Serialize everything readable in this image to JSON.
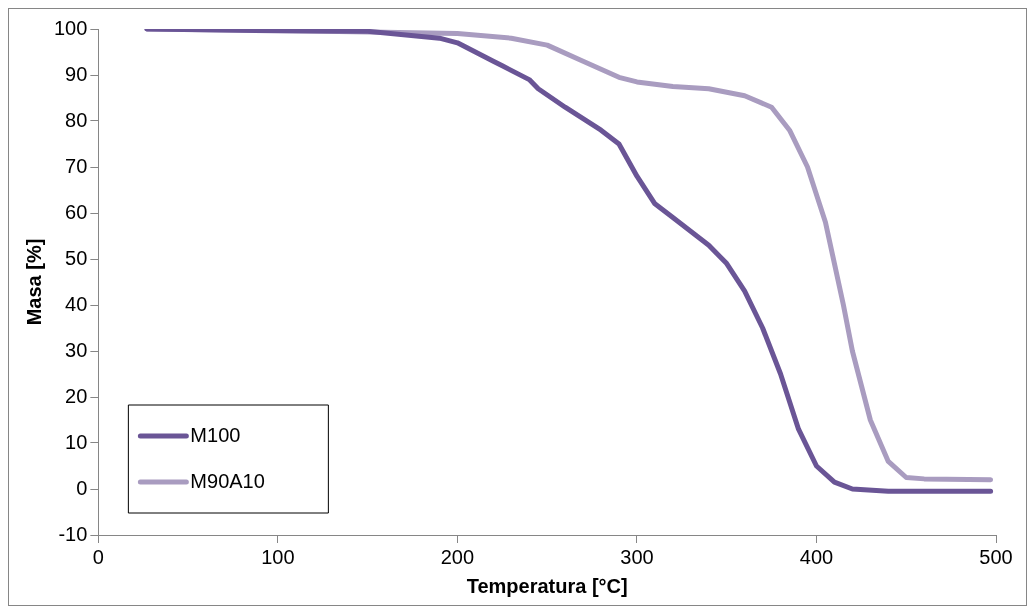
{
  "chart_data": {
    "type": "line",
    "xlabel": "Temperatura [°C]",
    "ylabel": "Masa [%]",
    "xlim": [
      0,
      500
    ],
    "xticks": [
      0,
      100,
      200,
      300,
      400,
      500
    ],
    "ylim": [
      -10,
      100
    ],
    "yticks": [
      -10,
      0,
      10,
      20,
      30,
      40,
      50,
      60,
      70,
      80,
      90,
      100
    ],
    "grid": false,
    "legend": "bottom left",
    "marker": "none",
    "line_style": "solid",
    "series": [
      {
        "name": "M100",
        "color": "#6a5596",
        "x": [
          27,
          100,
          150,
          190,
          200,
          210,
          220,
          225,
          240,
          245,
          260,
          280,
          290,
          300,
          310,
          320,
          340,
          350,
          360,
          370,
          380,
          390,
          400,
          410,
          420,
          440,
          497
        ],
        "values": [
          100,
          99.6,
          99.5,
          98,
          97,
          95,
          93,
          92,
          89,
          87,
          83,
          78,
          75,
          68,
          62,
          59,
          53,
          49,
          43,
          35,
          25,
          13,
          5,
          1.5,
          0,
          -0.5,
          -0.5
        ]
      },
      {
        "name": "M90A10",
        "color": "#a99cc0",
        "x": [
          27,
          100,
          200,
          230,
          250,
          270,
          290,
          300,
          320,
          340,
          360,
          375,
          385,
          395,
          405,
          415,
          420,
          430,
          440,
          450,
          460,
          497
        ],
        "values": [
          100,
          99.7,
          99,
          98,
          96.5,
          93,
          89.5,
          88.5,
          87.5,
          87,
          85.5,
          83,
          78,
          70,
          58,
          40,
          30,
          15,
          6,
          2.5,
          2.2,
          2
        ]
      }
    ]
  }
}
